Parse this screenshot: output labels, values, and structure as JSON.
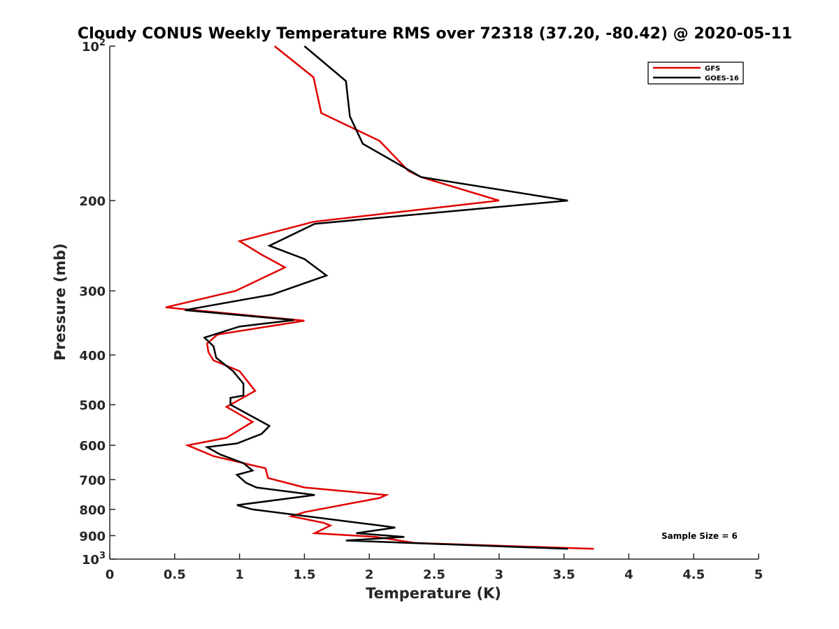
{
  "chart_data": {
    "type": "line",
    "title": "Cloudy CONUS Weekly Temperature RMS over 72318 (37.20, -80.42) @ 2020-05-11",
    "xlabel": "Temperature (K)",
    "ylabel": "Pressure (mb)",
    "xlim": [
      0,
      5
    ],
    "ylim": [
      100,
      1000
    ],
    "yscale": "log",
    "y_reversed": true,
    "grid": false,
    "x_ticks": [
      0,
      0.5,
      1,
      1.5,
      2,
      2.5,
      3,
      3.5,
      4,
      4.5,
      5
    ],
    "x_tick_labels": [
      "0",
      "0.5",
      "1",
      "1.5",
      "2",
      "2.5",
      "3",
      "3.5",
      "4",
      "4.5",
      "5"
    ],
    "y_ticks": [
      100,
      200,
      300,
      400,
      500,
      600,
      700,
      800,
      900,
      1000
    ],
    "y_tick_labels": [
      {
        "base": "10",
        "exp": "2"
      },
      {
        "base": "200",
        "exp": ""
      },
      {
        "base": "300",
        "exp": ""
      },
      {
        "base": "400",
        "exp": ""
      },
      {
        "base": "500",
        "exp": ""
      },
      {
        "base": "600",
        "exp": ""
      },
      {
        "base": "700",
        "exp": ""
      },
      {
        "base": "800",
        "exp": ""
      },
      {
        "base": "900",
        "exp": ""
      },
      {
        "base": "10",
        "exp": "3"
      }
    ],
    "legend_position": "top-right",
    "series": [
      {
        "name": "GFS",
        "color": "#e00000",
        "points": [
          [
            1.27,
            100
          ],
          [
            1.57,
            115
          ],
          [
            1.63,
            135
          ],
          [
            2.08,
            153
          ],
          [
            2.3,
            175
          ],
          [
            2.4,
            180
          ],
          [
            3.0,
            200
          ],
          [
            1.57,
            220
          ],
          [
            1.0,
            240
          ],
          [
            1.17,
            255
          ],
          [
            1.35,
            270
          ],
          [
            0.97,
            300
          ],
          [
            0.43,
            323
          ],
          [
            1.5,
            343
          ],
          [
            0.83,
            365
          ],
          [
            0.75,
            380
          ],
          [
            0.76,
            395
          ],
          [
            0.8,
            410
          ],
          [
            1.0,
            430
          ],
          [
            1.12,
            470
          ],
          [
            0.9,
            505
          ],
          [
            1.1,
            540
          ],
          [
            0.9,
            580
          ],
          [
            0.6,
            600
          ],
          [
            0.8,
            630
          ],
          [
            1.2,
            665
          ],
          [
            1.22,
            695
          ],
          [
            1.5,
            725
          ],
          [
            2.13,
            750
          ],
          [
            2.08,
            760
          ],
          [
            1.5,
            810
          ],
          [
            1.4,
            825
          ],
          [
            1.65,
            850
          ],
          [
            1.7,
            860
          ],
          [
            1.58,
            890
          ],
          [
            2.05,
            905
          ],
          [
            2.35,
            930
          ],
          [
            3.73,
            955
          ]
        ]
      },
      {
        "name": "GOES-16",
        "color": "#000000",
        "points": [
          [
            1.5,
            100
          ],
          [
            1.82,
            117
          ],
          [
            1.85,
            137
          ],
          [
            1.95,
            155
          ],
          [
            2.4,
            180
          ],
          [
            3.53,
            200
          ],
          [
            1.58,
            222
          ],
          [
            1.23,
            245
          ],
          [
            1.5,
            260
          ],
          [
            1.67,
            280
          ],
          [
            1.25,
            305
          ],
          [
            0.58,
            327
          ],
          [
            1.42,
            342
          ],
          [
            1.0,
            352
          ],
          [
            0.73,
            370
          ],
          [
            0.8,
            385
          ],
          [
            0.82,
            405
          ],
          [
            0.95,
            430
          ],
          [
            1.03,
            455
          ],
          [
            1.03,
            480
          ],
          [
            0.93,
            485
          ],
          [
            0.93,
            500
          ],
          [
            1.23,
            550
          ],
          [
            1.17,
            570
          ],
          [
            0.98,
            595
          ],
          [
            0.75,
            605
          ],
          [
            0.85,
            625
          ],
          [
            1.03,
            650
          ],
          [
            1.1,
            672
          ],
          [
            0.98,
            685
          ],
          [
            1.05,
            710
          ],
          [
            1.13,
            725
          ],
          [
            1.58,
            750
          ],
          [
            0.98,
            785
          ],
          [
            1.1,
            800
          ],
          [
            2.08,
            860
          ],
          [
            2.2,
            868
          ],
          [
            1.9,
            890
          ],
          [
            2.27,
            905
          ],
          [
            1.82,
            920
          ],
          [
            3.53,
            955
          ]
        ]
      }
    ],
    "annotations": [
      {
        "text": "Sample Size = 6"
      }
    ]
  }
}
